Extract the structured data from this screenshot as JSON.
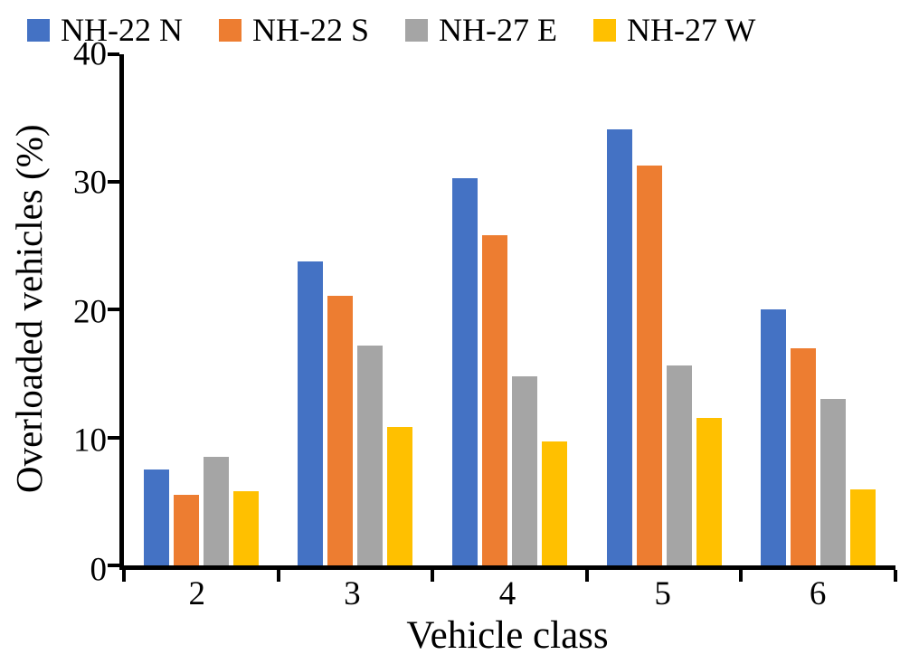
{
  "chart_data": {
    "type": "bar",
    "title": "",
    "xlabel": "Vehicle class",
    "ylabel": "Overloaded vehicles (%)",
    "categories": [
      "2",
      "3",
      "4",
      "5",
      "6"
    ],
    "ylim": [
      0,
      40
    ],
    "yticks": [
      0,
      10,
      20,
      30,
      40
    ],
    "grid": false,
    "legend_position": "top",
    "series": [
      {
        "name": "NH-22 N",
        "color": "#4472C4",
        "values": [
          7.5,
          23.8,
          30.3,
          34.1,
          20.0
        ]
      },
      {
        "name": "NH-22 S",
        "color": "#ED7D31",
        "values": [
          5.5,
          21.1,
          25.8,
          31.3,
          17.0
        ]
      },
      {
        "name": "NH-27 E",
        "color": "#A5A5A5",
        "values": [
          8.5,
          17.2,
          14.8,
          15.6,
          13.0
        ]
      },
      {
        "name": "NH-27 W",
        "color": "#FFC000",
        "values": [
          5.8,
          10.8,
          9.7,
          11.5,
          5.9
        ]
      }
    ]
  }
}
